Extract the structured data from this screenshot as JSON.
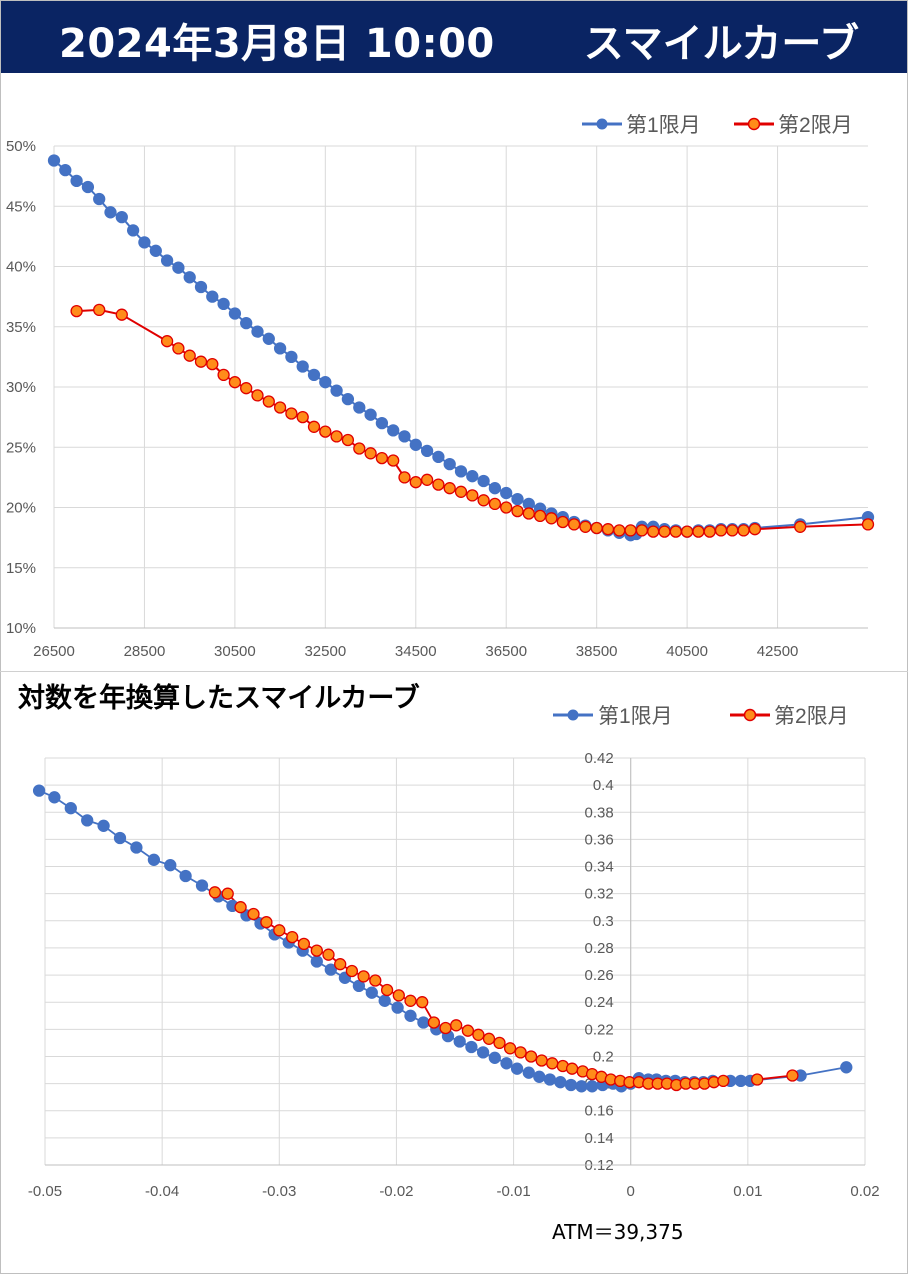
{
  "header": {
    "date_time": "2024年3月8日 10:00",
    "title": "スマイルカーブ"
  },
  "colors": {
    "header_bg": "#0a2463",
    "series1": "#4472c4",
    "series2_line": "#e00000",
    "series2_fill": "#ff8c1a"
  },
  "legend": {
    "series1": "第1限月",
    "series2": "第2限月"
  },
  "chart_data": [
    {
      "type": "line",
      "title": "",
      "xlabel": "",
      "ylabel": "",
      "xlim": [
        26500,
        44500
      ],
      "ylim": [
        10,
        50
      ],
      "x_ticks": [
        26500,
        28500,
        30500,
        32500,
        34500,
        36500,
        38500,
        40500,
        42500
      ],
      "y_ticks": [
        10,
        15,
        20,
        25,
        30,
        35,
        40,
        45,
        50
      ],
      "y_tick_labels": [
        "10%",
        "15%",
        "20%",
        "25%",
        "30%",
        "35%",
        "40%",
        "45%",
        "50%"
      ],
      "legend_position": "top-right",
      "grid": true,
      "series": [
        {
          "name": "第1限月",
          "x": [
            26500,
            26750,
            27000,
            27250,
            27500,
            27750,
            28000,
            28250,
            28500,
            28750,
            29000,
            29250,
            29500,
            29750,
            30000,
            30250,
            30500,
            30750,
            31000,
            31250,
            31500,
            31750,
            32000,
            32250,
            32500,
            32750,
            33000,
            33250,
            33500,
            33750,
            34000,
            34250,
            34500,
            34750,
            35000,
            35250,
            35500,
            35750,
            36000,
            36250,
            36500,
            36750,
            37000,
            37250,
            37500,
            37750,
            38000,
            38250,
            38500,
            38750,
            39000,
            39250,
            39375,
            39500,
            39750,
            40000,
            40250,
            40500,
            40750,
            41000,
            41250,
            41500,
            41750,
            42000,
            43000,
            44500
          ],
          "y": [
            48.8,
            48.0,
            47.1,
            46.6,
            45.6,
            44.5,
            44.1,
            43.0,
            42.0,
            41.3,
            40.5,
            39.9,
            39.1,
            38.3,
            37.5,
            36.9,
            36.1,
            35.3,
            34.6,
            34.0,
            33.2,
            32.5,
            31.7,
            31.0,
            30.4,
            29.7,
            29.0,
            28.3,
            27.7,
            27.0,
            26.4,
            25.9,
            25.2,
            24.7,
            24.2,
            23.6,
            23.0,
            22.6,
            22.2,
            21.6,
            21.2,
            20.7,
            20.3,
            19.9,
            19.5,
            19.2,
            18.8,
            18.5,
            18.3,
            18.1,
            17.9,
            17.7,
            17.8,
            18.4,
            18.4,
            18.2,
            18.1,
            18.0,
            18.1,
            18.1,
            18.2,
            18.2,
            18.2,
            18.3,
            18.6,
            19.2
          ]
        },
        {
          "name": "第2限月",
          "x": [
            27000,
            27500,
            28000,
            29000,
            29250,
            29500,
            29750,
            30000,
            30250,
            30500,
            30750,
            31000,
            31250,
            31500,
            31750,
            32000,
            32250,
            32500,
            32750,
            33000,
            33250,
            33500,
            33750,
            34000,
            34250,
            34500,
            34750,
            35000,
            35250,
            35500,
            35750,
            36000,
            36250,
            36500,
            36750,
            37000,
            37250,
            37500,
            37750,
            38000,
            38250,
            38500,
            38750,
            39000,
            39250,
            39500,
            39750,
            40000,
            40250,
            40500,
            40750,
            41000,
            41250,
            41500,
            41750,
            42000,
            43000,
            44500
          ],
          "y": [
            36.3,
            36.4,
            36.0,
            33.8,
            33.2,
            32.6,
            32.1,
            31.9,
            31.0,
            30.4,
            29.9,
            29.3,
            28.8,
            28.3,
            27.8,
            27.5,
            26.7,
            26.3,
            25.9,
            25.6,
            24.9,
            24.5,
            24.1,
            23.9,
            22.5,
            22.1,
            22.3,
            21.9,
            21.6,
            21.3,
            21.0,
            20.6,
            20.3,
            20.0,
            19.7,
            19.5,
            19.3,
            19.1,
            18.8,
            18.6,
            18.4,
            18.3,
            18.2,
            18.1,
            18.1,
            18.1,
            18.0,
            18.0,
            18.0,
            18.0,
            18.0,
            18.0,
            18.1,
            18.1,
            18.1,
            18.2,
            18.4,
            18.6
          ]
        }
      ]
    },
    {
      "type": "scatter",
      "title": "対数を年換算したスマイルカーブ",
      "xlabel": "",
      "ylabel": "",
      "xlim": [
        -0.05,
        0.02
      ],
      "ylim": [
        0.12,
        0.42
      ],
      "x_ticks": [
        -0.05,
        -0.04,
        -0.03,
        -0.02,
        -0.01,
        0,
        0.01,
        0.02
      ],
      "x_tick_labels": [
        "-0.05",
        "-0.04",
        "-0.03",
        "-0.02",
        "-0.01",
        "0",
        "0.01",
        "0.02"
      ],
      "y_ticks": [
        0.12,
        0.14,
        0.16,
        0.18,
        0.2,
        0.22,
        0.24,
        0.26,
        0.28,
        0.3,
        0.32,
        0.34,
        0.36,
        0.38,
        0.4,
        0.42
      ],
      "y_tick_labels": [
        "0.12",
        "0.14",
        "0.16",
        "0.18",
        "0.2",
        "0.22",
        "0.24",
        "0.26",
        "0.28",
        "0.3",
        "0.32",
        "0.34",
        "0.36",
        "0.38",
        "0.4",
        "0.42"
      ],
      "legend_position": "top-right",
      "grid": true,
      "annotation": "ATM＝39,375",
      "series": [
        {
          "name": "第1限月",
          "x": [
            -0.0505,
            -0.0492,
            -0.0478,
            -0.0464,
            -0.045,
            -0.0436,
            -0.0422,
            -0.0407,
            -0.0393,
            -0.038,
            -0.0366,
            -0.0352,
            -0.034,
            -0.0328,
            -0.0316,
            -0.0304,
            -0.0292,
            -0.028,
            -0.0268,
            -0.0256,
            -0.0244,
            -0.0232,
            -0.0221,
            -0.021,
            -0.0199,
            -0.0188,
            -0.0177,
            -0.0166,
            -0.0156,
            -0.0146,
            -0.0136,
            -0.0126,
            -0.0116,
            -0.0106,
            -0.0097,
            -0.0087,
            -0.0078,
            -0.0069,
            -0.006,
            -0.0051,
            -0.0042,
            -0.0033,
            -0.0024,
            -0.0015,
            -0.0008,
            0.0,
            0.0007,
            0.0015,
            0.0022,
            0.003,
            0.0038,
            0.0046,
            0.0054,
            0.0062,
            0.007,
            0.0085,
            0.0094,
            0.0102,
            0.0145,
            0.0184
          ],
          "y": [
            0.396,
            0.391,
            0.383,
            0.374,
            0.37,
            0.361,
            0.354,
            0.345,
            0.341,
            0.333,
            0.326,
            0.318,
            0.311,
            0.304,
            0.298,
            0.29,
            0.284,
            0.278,
            0.27,
            0.264,
            0.258,
            0.252,
            0.247,
            0.241,
            0.236,
            0.23,
            0.225,
            0.22,
            0.215,
            0.211,
            0.207,
            0.203,
            0.199,
            0.195,
            0.191,
            0.188,
            0.185,
            0.183,
            0.181,
            0.179,
            0.178,
            0.178,
            0.179,
            0.18,
            0.178,
            0.18,
            0.184,
            0.183,
            0.183,
            0.182,
            0.182,
            0.181,
            0.181,
            0.181,
            0.182,
            0.182,
            0.182,
            0.182,
            0.186,
            0.192
          ]
        },
        {
          "name": "第2限月",
          "x": [
            -0.0355,
            -0.0344,
            -0.0333,
            -0.0322,
            -0.0311,
            -0.03,
            -0.0289,
            -0.0279,
            -0.0268,
            -0.0258,
            -0.0248,
            -0.0238,
            -0.0228,
            -0.0218,
            -0.0208,
            -0.0198,
            -0.0188,
            -0.0178,
            -0.0168,
            -0.0158,
            -0.0149,
            -0.0139,
            -0.013,
            -0.0121,
            -0.0112,
            -0.0103,
            -0.0094,
            -0.0085,
            -0.0076,
            -0.0067,
            -0.0058,
            -0.005,
            -0.0041,
            -0.0033,
            -0.0025,
            -0.0017,
            -0.0009,
            -0.0001,
            0.0007,
            0.0015,
            0.0023,
            0.0031,
            0.0039,
            0.0047,
            0.0055,
            0.0063,
            0.0071,
            0.0079,
            0.0108,
            0.0138
          ],
          "y": [
            0.321,
            0.32,
            0.31,
            0.305,
            0.299,
            0.293,
            0.288,
            0.283,
            0.278,
            0.275,
            0.268,
            0.263,
            0.259,
            0.256,
            0.249,
            0.245,
            0.241,
            0.24,
            0.225,
            0.221,
            0.223,
            0.219,
            0.216,
            0.213,
            0.21,
            0.206,
            0.203,
            0.2,
            0.197,
            0.195,
            0.193,
            0.191,
            0.189,
            0.187,
            0.185,
            0.183,
            0.182,
            0.181,
            0.181,
            0.18,
            0.18,
            0.18,
            0.179,
            0.18,
            0.18,
            0.18,
            0.181,
            0.182,
            0.183,
            0.186
          ]
        }
      ]
    }
  ]
}
